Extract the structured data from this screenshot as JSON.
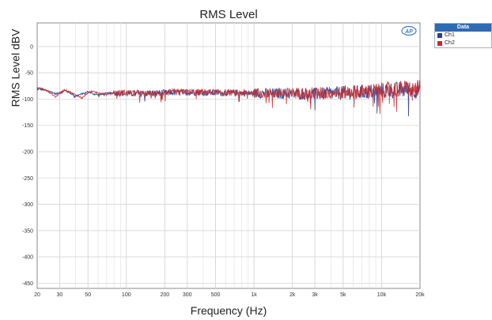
{
  "chart_data": {
    "type": "line",
    "title": "RMS Level",
    "xlabel": "Frequency (Hz)",
    "ylabel": "RMS Level dBV",
    "x_scale": "log",
    "xlim": [
      20,
      20000
    ],
    "ylim": [
      -460,
      45
    ],
    "x_ticks": [
      20,
      30,
      50,
      100,
      200,
      300,
      500,
      1000,
      2000,
      3000,
      5000,
      10000,
      20000
    ],
    "x_tick_labels": [
      "20",
      "30",
      "50",
      "100",
      "200",
      "300",
      "500",
      "1k",
      "2k",
      "3k",
      "5k",
      "10k",
      "20k"
    ],
    "y_ticks": [
      0,
      -50,
      -100,
      -150,
      -200,
      -250,
      -300,
      -350,
      -400,
      -450
    ],
    "y_tick_labels": [
      "0",
      "-50",
      "-100",
      "-150",
      "-200",
      "-250",
      "-300",
      "-350",
      "-400",
      "-450"
    ],
    "grid": true,
    "legend_title": "Data",
    "legend_position": "outside-right",
    "series": [
      {
        "name": "Ch1",
        "color": "#2b3f8c",
        "x": [
          20,
          22,
          25,
          28,
          30,
          33,
          36,
          40,
          45,
          50,
          55,
          60,
          70,
          80,
          100,
          130,
          160,
          200,
          300,
          500,
          700,
          1000,
          1500,
          2000,
          3000,
          5000,
          7000,
          10000,
          15000,
          20000
        ],
        "y": [
          -80,
          -82,
          -85,
          -90,
          -88,
          -84,
          -88,
          -94,
          -90,
          -86,
          -90,
          -92,
          -89,
          -88,
          -89,
          -90,
          -88,
          -88,
          -87,
          -88,
          -88,
          -89,
          -89,
          -90,
          -90,
          -88,
          -87,
          -84,
          -82,
          -82
        ]
      },
      {
        "name": "Ch2",
        "color": "#c8282c",
        "x": [
          20,
          22,
          25,
          28,
          30,
          33,
          36,
          40,
          45,
          50,
          55,
          60,
          70,
          80,
          100,
          130,
          160,
          200,
          300,
          500,
          700,
          1000,
          1500,
          2000,
          3000,
          5000,
          7000,
          10000,
          15000,
          20000
        ],
        "y": [
          -78,
          -80,
          -87,
          -96,
          -88,
          -82,
          -86,
          -92,
          -98,
          -88,
          -84,
          -88,
          -90,
          -88,
          -88,
          -89,
          -90,
          -88,
          -86,
          -87,
          -88,
          -88,
          -89,
          -88,
          -89,
          -87,
          -86,
          -83,
          -80,
          -80
        ]
      }
    ]
  },
  "logo_text": "AP"
}
